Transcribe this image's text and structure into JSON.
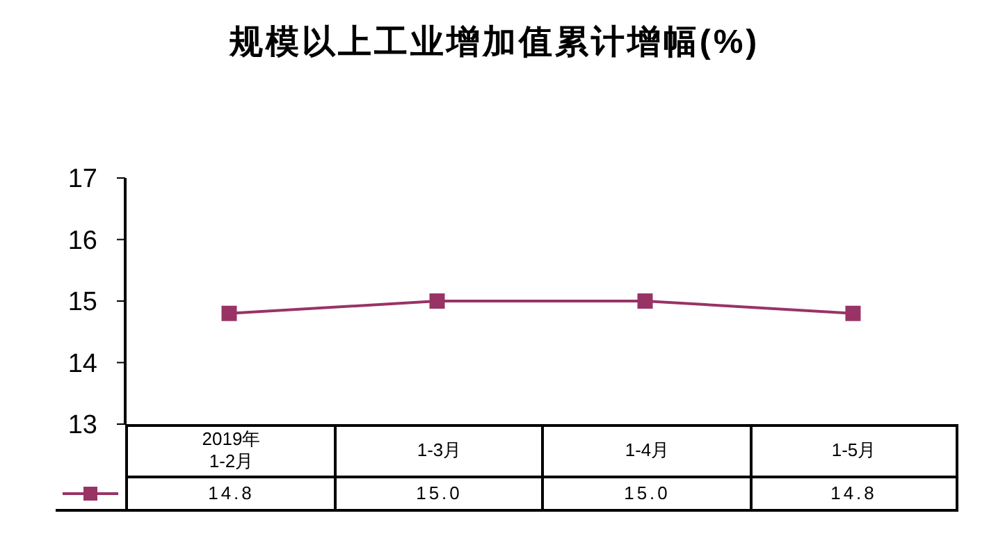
{
  "chart_data": {
    "type": "line",
    "title": "规模以上工业增加值累计增幅(%)",
    "categories": [
      "2019年\n1-2月",
      "1-3月",
      "1-4月",
      "1-5月"
    ],
    "series": [
      {
        "color": "#993366",
        "values": [
          14.8,
          15.0,
          15.0,
          14.8
        ],
        "value_labels": [
          "14.8",
          "15.0",
          "15.0",
          "14.8"
        ]
      }
    ],
    "ylim": [
      13,
      17
    ],
    "yticks": [
      13,
      14,
      15,
      16,
      17
    ],
    "grid": false,
    "marker": "square",
    "line_style": "solid"
  }
}
